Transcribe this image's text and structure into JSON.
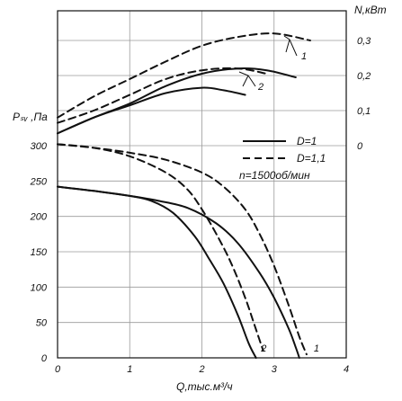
{
  "chart_data": {
    "type": "line",
    "xlabel": "Q,тыс.м³/ч",
    "ylabel_left": "Pₛᵥ ,Па",
    "ylabel_right": "N,кВт",
    "xlim": [
      0,
      4
    ],
    "ylim_left": [
      0,
      300
    ],
    "ylim_right": [
      0,
      0.3
    ],
    "x_ticks": [
      "0",
      "1",
      "2",
      "3",
      "4"
    ],
    "y_ticks_left": [
      "0",
      "50",
      "100",
      "150",
      "200",
      "250",
      "300"
    ],
    "y_ticks_right": [
      "0",
      "0,1",
      "0,2",
      "0,3"
    ],
    "grid": true,
    "legend": {
      "position": "right",
      "items": [
        {
          "label": "D=1",
          "style": "solid"
        },
        {
          "label": "D=1,1",
          "style": "dashed"
        }
      ],
      "note": "n=1500об/мин"
    },
    "curve_labels": [
      "1",
      "2"
    ],
    "series": [
      {
        "quantity": "pressure",
        "diameter": "D=1",
        "curve_label": "2",
        "style": "solid",
        "x": [
          0,
          0.5,
          1.0,
          1.3,
          1.6,
          1.9,
          2.1,
          2.3,
          2.5,
          2.65,
          2.75
        ],
        "y": [
          242,
          236,
          229,
          222,
          205,
          172,
          140,
          105,
          60,
          20,
          0
        ]
      },
      {
        "quantity": "pressure",
        "diameter": "D=1",
        "curve_label": "1",
        "style": "solid",
        "x": [
          0,
          0.5,
          1.0,
          1.4,
          1.8,
          2.2,
          2.5,
          2.8,
          3.0,
          3.2,
          3.3,
          3.35
        ],
        "y": [
          242,
          236,
          229,
          222,
          212,
          190,
          162,
          120,
          85,
          42,
          15,
          0
        ]
      },
      {
        "quantity": "pressure",
        "diameter": "D=1,1",
        "curve_label": "2",
        "style": "dashed",
        "x": [
          0,
          0.5,
          1.0,
          1.5,
          1.8,
          2.0,
          2.2,
          2.4,
          2.6,
          2.75,
          2.85
        ],
        "y": [
          302,
          297,
          285,
          262,
          238,
          210,
          175,
          135,
          85,
          40,
          10
        ]
      },
      {
        "quantity": "pressure",
        "diameter": "D=1,1",
        "curve_label": "1",
        "style": "dashed",
        "x": [
          0,
          0.5,
          1.0,
          1.5,
          2.0,
          2.3,
          2.6,
          2.8,
          3.0,
          3.2,
          3.35,
          3.45
        ],
        "y": [
          302,
          297,
          290,
          280,
          262,
          242,
          210,
          175,
          130,
          75,
          30,
          5
        ]
      },
      {
        "quantity": "power",
        "diameter": "D=1",
        "curve_label": "2",
        "style": "solid",
        "x": [
          0,
          0.5,
          1.0,
          1.5,
          2.0,
          2.3,
          2.6
        ],
        "y": [
          0.035,
          0.08,
          0.115,
          0.15,
          0.165,
          0.158,
          0.145
        ]
      },
      {
        "quantity": "power",
        "diameter": "D=1",
        "curve_label": "1",
        "style": "solid",
        "x": [
          0,
          0.5,
          1.0,
          1.5,
          2.0,
          2.5,
          2.9,
          3.3
        ],
        "y": [
          0.035,
          0.08,
          0.12,
          0.17,
          0.205,
          0.22,
          0.215,
          0.195
        ]
      },
      {
        "quantity": "power",
        "diameter": "D=1,1",
        "curve_label": "2",
        "style": "dashed",
        "x": [
          0,
          0.5,
          1.0,
          1.5,
          2.0,
          2.5,
          2.9
        ],
        "y": [
          0.065,
          0.1,
          0.145,
          0.19,
          0.215,
          0.22,
          0.205
        ]
      },
      {
        "quantity": "power",
        "diameter": "D=1,1",
        "curve_label": "1",
        "style": "dashed",
        "x": [
          0,
          0.5,
          1.0,
          1.5,
          2.0,
          2.5,
          3.0,
          3.5
        ],
        "y": [
          0.08,
          0.14,
          0.19,
          0.24,
          0.285,
          0.31,
          0.32,
          0.3
        ]
      }
    ]
  }
}
